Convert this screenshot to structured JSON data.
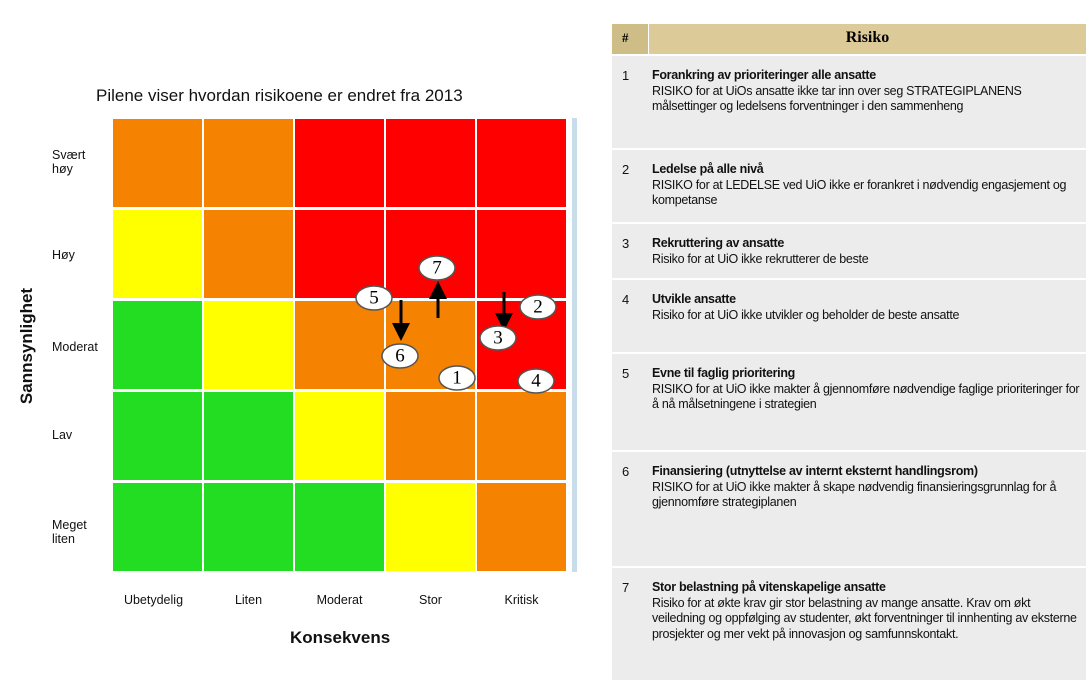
{
  "matrix": {
    "title": "Pilene viser hvordan risikoene er endret fra 2013",
    "y_axis_label": "Sannsynlighet",
    "x_axis_label": "Konsekvens",
    "rows": [
      "Svært høy",
      "Høy",
      "Moderat",
      "Lav",
      "Meget liten"
    ],
    "columns": [
      "Ubetydelig",
      "Liten",
      "Moderat",
      "Stor",
      "Kritisk"
    ],
    "cells": [
      [
        "#f58200",
        "#f58200",
        "#ff0000",
        "#ff0000",
        "#ff0000"
      ],
      [
        "#ffff00",
        "#f58200",
        "#ff0000",
        "#ff0000",
        "#ff0000"
      ],
      [
        "#22dd22",
        "#ffff00",
        "#f58200",
        "#f58200",
        "#ff0000"
      ],
      [
        "#22dd22",
        "#22dd22",
        "#ffff00",
        "#f58200",
        "#f58200"
      ],
      [
        "#22dd22",
        "#22dd22",
        "#22dd22",
        "#ffff00",
        "#f58200"
      ]
    ],
    "markers": [
      "1",
      "2",
      "3",
      "4",
      "5",
      "6",
      "7"
    ]
  },
  "table": {
    "header": [
      "#",
      "Risiko"
    ],
    "rows": [
      [
        "1",
        "Forankring av prioriteringer alle ansatte",
        "RISIKO for at UiOs ansatte ikke tar inn over seg STRATEGIPLANENS målsettinger og ledelsens forventninger i den sammenheng"
      ],
      [
        "2",
        "Ledelse på alle nivå",
        "RISIKO for at LEDELSE ved UiO ikke er forankret i nødvendig engasjement og kompetanse"
      ],
      [
        "3",
        "Rekruttering av ansatte",
        "Risiko for at UiO ikke rekrutterer de beste"
      ],
      [
        "4",
        "Utvikle ansatte",
        "Risiko for at UiO ikke utvikler og beholder de beste ansatte"
      ],
      [
        "5",
        "Evne til faglig prioritering",
        "RISIKO for at UiO ikke makter å gjennomføre nødvendige faglige prioriteringer for å nå målsetningene i strategien"
      ],
      [
        "6",
        "Finansiering (utnyttelse av internt eksternt handlingsrom)",
        "RISIKO for at UiO ikke makter å skape nødvendig finansieringsgrunnlag for å gjennomføre strategiplanen"
      ],
      [
        "7",
        "Stor belastning på vitenskapelige ansatte",
        "Risiko for at økte krav gir stor belastning av mange ansatte. Krav om økt veiledning og oppfølging av studenter, økt forventninger til innhenting av eksterne prosjekter og mer vekt på innovasjon og samfunnskontakt."
      ]
    ]
  }
}
